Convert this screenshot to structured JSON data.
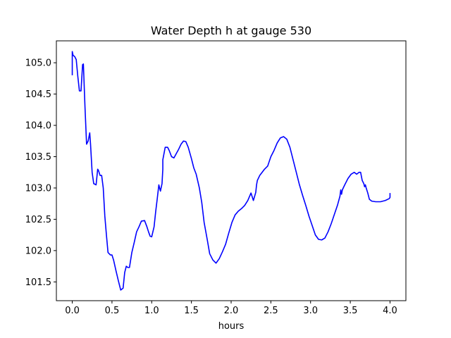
{
  "chart_data": {
    "type": "line",
    "title": "Water Depth h at gauge 530",
    "xlabel": "hours",
    "ylabel": "",
    "xlim": [
      -0.2,
      4.2
    ],
    "ylim": [
      101.2,
      105.35
    ],
    "xticks": [
      0.0,
      0.5,
      1.0,
      1.5,
      2.0,
      2.5,
      3.0,
      3.5,
      4.0
    ],
    "xtick_labels": [
      "0.0",
      "0.5",
      "1.0",
      "1.5",
      "2.0",
      "2.5",
      "3.0",
      "3.5",
      "4.0"
    ],
    "yticks": [
      101.5,
      102.0,
      102.5,
      103.0,
      103.5,
      104.0,
      104.5,
      105.0
    ],
    "ytick_labels": [
      "101.5",
      "102.0",
      "102.5",
      "103.0",
      "103.5",
      "104.0",
      "104.5",
      "105.0"
    ],
    "grid": false,
    "legend": "none",
    "line_color": "#0000ff",
    "series": [
      {
        "x": [
          0.0,
          0.0,
          0.01,
          0.03,
          0.05,
          0.07,
          0.09,
          0.11,
          0.13,
          0.14,
          0.16,
          0.18,
          0.2,
          0.22,
          0.23,
          0.25,
          0.27,
          0.3,
          0.32,
          0.33,
          0.35,
          0.37,
          0.39,
          0.41,
          0.43,
          0.45,
          0.48,
          0.5,
          0.52,
          0.55,
          0.58,
          0.61,
          0.64,
          0.66,
          0.68,
          0.7,
          0.72,
          0.75,
          0.78,
          0.81,
          0.84,
          0.87,
          0.91,
          0.94,
          0.96,
          0.98,
          1.0,
          1.03,
          1.05,
          1.07,
          1.09,
          1.11,
          1.13,
          1.14,
          1.14,
          1.17,
          1.2,
          1.22,
          1.25,
          1.28,
          1.31,
          1.34,
          1.37,
          1.4,
          1.43,
          1.46,
          1.5,
          1.53,
          1.56,
          1.6,
          1.63,
          1.66,
          1.7,
          1.73,
          1.77,
          1.81,
          1.85,
          1.89,
          1.93,
          1.97,
          2.01,
          2.05,
          2.09,
          2.13,
          2.17,
          2.21,
          2.25,
          2.28,
          2.31,
          2.32,
          2.33,
          2.36,
          2.39,
          2.42,
          2.46,
          2.5,
          2.54,
          2.58,
          2.62,
          2.66,
          2.7,
          2.74,
          2.78,
          2.82,
          2.86,
          2.9,
          2.94,
          2.98,
          3.02,
          3.06,
          3.1,
          3.14,
          3.18,
          3.22,
          3.26,
          3.3,
          3.34,
          3.37,
          3.38,
          3.39,
          3.4,
          3.43,
          3.47,
          3.51,
          3.55,
          3.58,
          3.61,
          3.63,
          3.65,
          3.67,
          3.68,
          3.69,
          3.7,
          3.72,
          3.74,
          3.77,
          3.82,
          3.88,
          3.94,
          3.99,
          4.0,
          4.0
        ],
        "y": [
          104.8,
          105.18,
          105.12,
          105.1,
          105.05,
          104.78,
          104.55,
          104.55,
          104.97,
          104.98,
          104.3,
          103.7,
          103.75,
          103.88,
          103.7,
          103.25,
          103.07,
          103.05,
          103.3,
          103.28,
          103.2,
          103.2,
          103.0,
          102.55,
          102.25,
          101.97,
          101.93,
          101.93,
          101.85,
          101.68,
          101.52,
          101.37,
          101.4,
          101.65,
          101.75,
          101.73,
          101.73,
          101.97,
          102.13,
          102.3,
          102.38,
          102.47,
          102.48,
          102.38,
          102.3,
          102.23,
          102.22,
          102.38,
          102.62,
          102.83,
          103.05,
          102.95,
          103.07,
          103.3,
          103.45,
          103.65,
          103.65,
          103.6,
          103.5,
          103.48,
          103.55,
          103.62,
          103.7,
          103.75,
          103.74,
          103.65,
          103.47,
          103.32,
          103.22,
          103.0,
          102.77,
          102.45,
          102.17,
          101.95,
          101.85,
          101.8,
          101.87,
          101.98,
          102.1,
          102.28,
          102.45,
          102.57,
          102.63,
          102.67,
          102.72,
          102.8,
          102.92,
          102.8,
          102.93,
          103.05,
          103.12,
          103.2,
          103.25,
          103.3,
          103.35,
          103.5,
          103.6,
          103.72,
          103.8,
          103.82,
          103.78,
          103.65,
          103.45,
          103.25,
          103.05,
          102.88,
          102.72,
          102.55,
          102.4,
          102.25,
          102.18,
          102.17,
          102.2,
          102.3,
          102.43,
          102.58,
          102.73,
          102.87,
          102.97,
          102.9,
          102.97,
          103.05,
          103.15,
          103.22,
          103.25,
          103.22,
          103.25,
          103.25,
          103.12,
          103.07,
          103.02,
          103.05,
          103.0,
          102.92,
          102.82,
          102.79,
          102.78,
          102.78,
          102.8,
          102.83,
          102.85,
          102.92
        ]
      }
    ]
  }
}
